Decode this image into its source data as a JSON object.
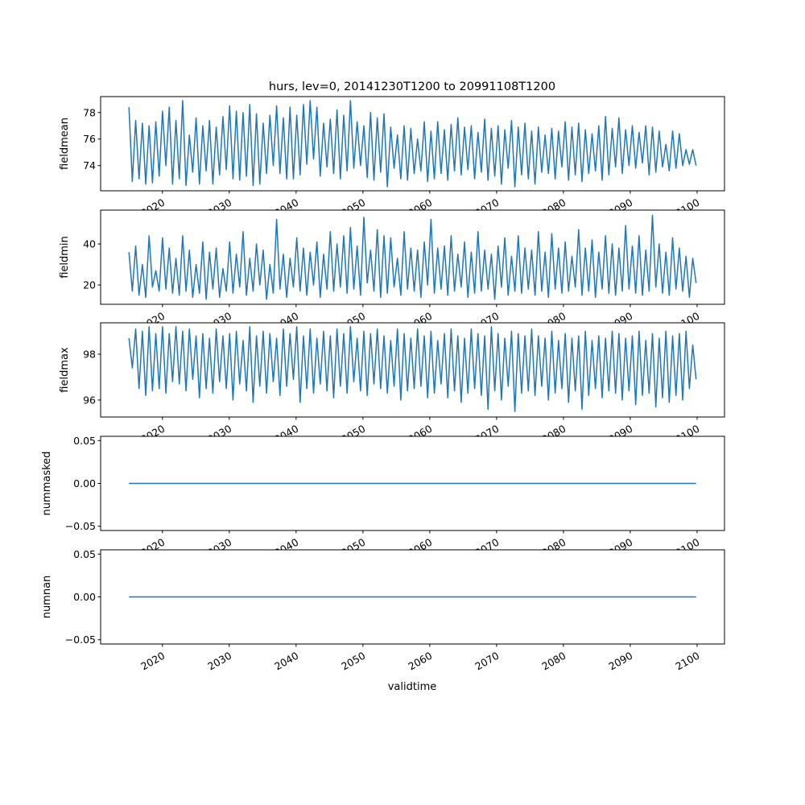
{
  "chart_data": {
    "type": "line",
    "title": "hurs, lev=0, 20141230T1200 to 20991108T1200",
    "xlabel": "validtime",
    "x_range": [
      2014.99,
      2099.85
    ],
    "xlim": [
      2010.75,
      2104.1
    ],
    "xticks": [
      2020,
      2030,
      2040,
      2050,
      2060,
      2070,
      2080,
      2090,
      2100
    ],
    "xtick_labels": [
      "2020",
      "2030",
      "2040",
      "2050",
      "2060",
      "2070",
      "2080",
      "2090",
      "2100"
    ],
    "line_color": "#1f77b4",
    "panels": [
      {
        "ylabel": "fieldmean",
        "ylim": [
          72.1,
          79.2
        ],
        "yticks": [
          74,
          76,
          78
        ],
        "ytick_labels": [
          "74",
          "76",
          "78"
        ],
        "values": [
          78.4,
          72.8,
          77.4,
          73.0,
          77.2,
          72.6,
          77.0,
          72.7,
          77.3,
          73.2,
          78.1,
          74.0,
          78.4,
          72.6,
          77.4,
          73.0,
          78.9,
          72.5,
          76.3,
          73.5,
          77.6,
          72.6,
          77.0,
          73.6,
          77.4,
          72.6,
          76.9,
          73.3,
          77.7,
          73.7,
          78.5,
          73.0,
          78.1,
          72.9,
          78.0,
          73.2,
          78.6,
          72.5,
          77.9,
          72.6,
          77.2,
          73.4,
          77.8,
          74.0,
          78.5,
          73.4,
          77.6,
          73.0,
          78.4,
          73.0,
          77.8,
          73.3,
          78.6,
          74.1,
          78.9,
          74.5,
          78.4,
          73.2,
          77.2,
          73.9,
          77.5,
          73.4,
          78.2,
          73.0,
          77.8,
          73.6,
          78.9,
          73.8,
          77.3,
          74.0,
          77.0,
          73.1,
          78.0,
          72.9,
          77.6,
          73.5,
          77.9,
          72.4,
          76.9,
          73.8,
          76.3,
          73.0,
          77.0,
          72.9,
          76.8,
          73.4,
          76.0,
          73.6,
          77.3,
          72.8,
          76.6,
          73.0,
          77.3,
          73.4,
          76.7,
          72.9,
          77.1,
          73.6,
          77.6,
          73.3,
          76.9,
          73.7,
          77.0,
          73.0,
          76.5,
          73.5,
          77.5,
          72.9,
          76.8,
          73.2,
          77.0,
          72.6,
          76.7,
          73.8,
          77.4,
          72.4,
          76.9,
          73.3,
          77.2,
          73.0,
          76.6,
          72.6,
          76.9,
          73.5,
          76.3,
          73.4,
          76.8,
          73.0,
          76.6,
          73.9,
          77.3,
          72.9,
          76.9,
          73.3,
          77.2,
          72.8,
          76.7,
          73.4,
          76.4,
          73.6,
          77.0,
          72.9,
          77.7,
          73.3,
          76.8,
          73.9,
          77.6,
          73.4,
          76.7,
          74.0,
          77.0,
          73.8,
          76.5,
          74.2,
          77.0,
          73.3,
          76.9,
          73.5,
          76.6,
          73.9,
          75.6,
          73.6,
          76.6,
          73.8,
          76.4,
          74.0,
          75.2,
          74.1,
          75.2,
          74.0
        ]
      },
      {
        "ylabel": "fieldmin",
        "ylim": [
          10.6,
          56.5
        ],
        "yticks": [
          20,
          40
        ],
        "ytick_labels": [
          "20",
          "40"
        ],
        "values": [
          36,
          17,
          39,
          15,
          30,
          14,
          44,
          19,
          27,
          17,
          43,
          18,
          38,
          16,
          33,
          15,
          44,
          17,
          37,
          14,
          30,
          16,
          41,
          13,
          36,
          18,
          38,
          14,
          28,
          17,
          41,
          16,
          35,
          19,
          46,
          15,
          33,
          17,
          40,
          20,
          37,
          13,
          30,
          16,
          52,
          18,
          35,
          14,
          33,
          19,
          43,
          17,
          38,
          15,
          36,
          20,
          41,
          14,
          35,
          18,
          46,
          17,
          40,
          19,
          44,
          16,
          48,
          18,
          39,
          15,
          53,
          21,
          37,
          17,
          47,
          14,
          44,
          16,
          43,
          19,
          33,
          15,
          46,
          18,
          38,
          17,
          37,
          14,
          41,
          20,
          52,
          16,
          38,
          18,
          39,
          15,
          44,
          17,
          35,
          19,
          41,
          14,
          36,
          16,
          46,
          17,
          37,
          18,
          35,
          13,
          39,
          19,
          43,
          15,
          34,
          17,
          44,
          16,
          38,
          18,
          37,
          15,
          46,
          17,
          36,
          14,
          45,
          18,
          38,
          16,
          41,
          17,
          34,
          19,
          47,
          15,
          38,
          17,
          42,
          14,
          36,
          18,
          44,
          16,
          40,
          15,
          38,
          17,
          49,
          18,
          39,
          16,
          44,
          15,
          37,
          17,
          54,
          19,
          40,
          16,
          36,
          15,
          43,
          18,
          38,
          17,
          34,
          14,
          33,
          21
        ]
      },
      {
        "ylabel": "fieldmax",
        "ylim": [
          95.26,
          99.37
        ],
        "yticks": [
          96,
          98
        ],
        "ytick_labels": [
          "96",
          "98"
        ],
        "values": [
          98.7,
          97.4,
          99.1,
          96.5,
          99.0,
          96.2,
          99.2,
          96.4,
          98.9,
          96.5,
          99.2,
          96.3,
          98.9,
          96.8,
          99.2,
          96.7,
          99.0,
          96.4,
          99.1,
          96.9,
          98.8,
          96.1,
          98.9,
          96.5,
          98.7,
          96.3,
          99.1,
          96.8,
          98.8,
          96.5,
          98.9,
          96.0,
          99.0,
          96.7,
          98.6,
          96.4,
          99.2,
          95.9,
          98.8,
          96.6,
          99.0,
          96.3,
          98.9,
          96.8,
          98.7,
          96.2,
          99.1,
          96.6,
          98.9,
          96.9,
          99.2,
          95.9,
          98.8,
          96.5,
          99.1,
          96.3,
          98.7,
          96.7,
          99.0,
          96.4,
          98.8,
          96.1,
          99.1,
          96.6,
          98.9,
          96.3,
          99.2,
          96.8,
          98.7,
          96.4,
          99.0,
          96.2,
          98.9,
          96.7,
          99.1,
          96.5,
          98.8,
          96.3,
          98.6,
          96.6,
          99.1,
          96.0,
          98.9,
          96.4,
          98.7,
          96.5,
          99.1,
          96.6,
          98.8,
          96.1,
          99.0,
          96.3,
          98.6,
          96.7,
          98.9,
          96.1,
          99.1,
          96.4,
          98.8,
          95.9,
          98.7,
          96.3,
          99.1,
          96.5,
          98.9,
          96.2,
          98.8,
          95.6,
          99.2,
          96.4,
          98.9,
          96.0,
          98.7,
          96.6,
          99.0,
          95.5,
          98.9,
          96.3,
          98.8,
          96.4,
          99.1,
          96.2,
          98.8,
          96.6,
          98.7,
          96.0,
          99.0,
          96.3,
          98.6,
          96.5,
          98.9,
          95.9,
          98.7,
          96.4,
          98.8,
          95.6,
          99.0,
          96.2,
          98.6,
          96.5,
          98.8,
          96.1,
          98.7,
          96.4,
          99.0,
          96.3,
          98.9,
          96.0,
          98.7,
          96.4,
          98.8,
          95.8,
          99.0,
          96.2,
          98.6,
          96.3,
          98.9,
          95.7,
          98.7,
          96.1,
          99.0,
          95.9,
          98.8,
          96.2,
          98.9,
          96.0,
          99.0,
          96.5,
          98.4,
          96.9
        ]
      },
      {
        "ylabel": "nummasked",
        "ylim": [
          -0.055,
          0.055
        ],
        "yticks": [
          -0.05,
          0,
          0.05
        ],
        "ytick_labels": [
          "−0.05",
          "0.00",
          "0.05"
        ],
        "values": [
          0,
          0
        ]
      },
      {
        "ylabel": "numnan",
        "ylim": [
          -0.055,
          0.055
        ],
        "yticks": [
          -0.05,
          0,
          0.05
        ],
        "ytick_labels": [
          "−0.05",
          "0.00",
          "0.05"
        ],
        "values": [
          0,
          0
        ]
      }
    ]
  }
}
